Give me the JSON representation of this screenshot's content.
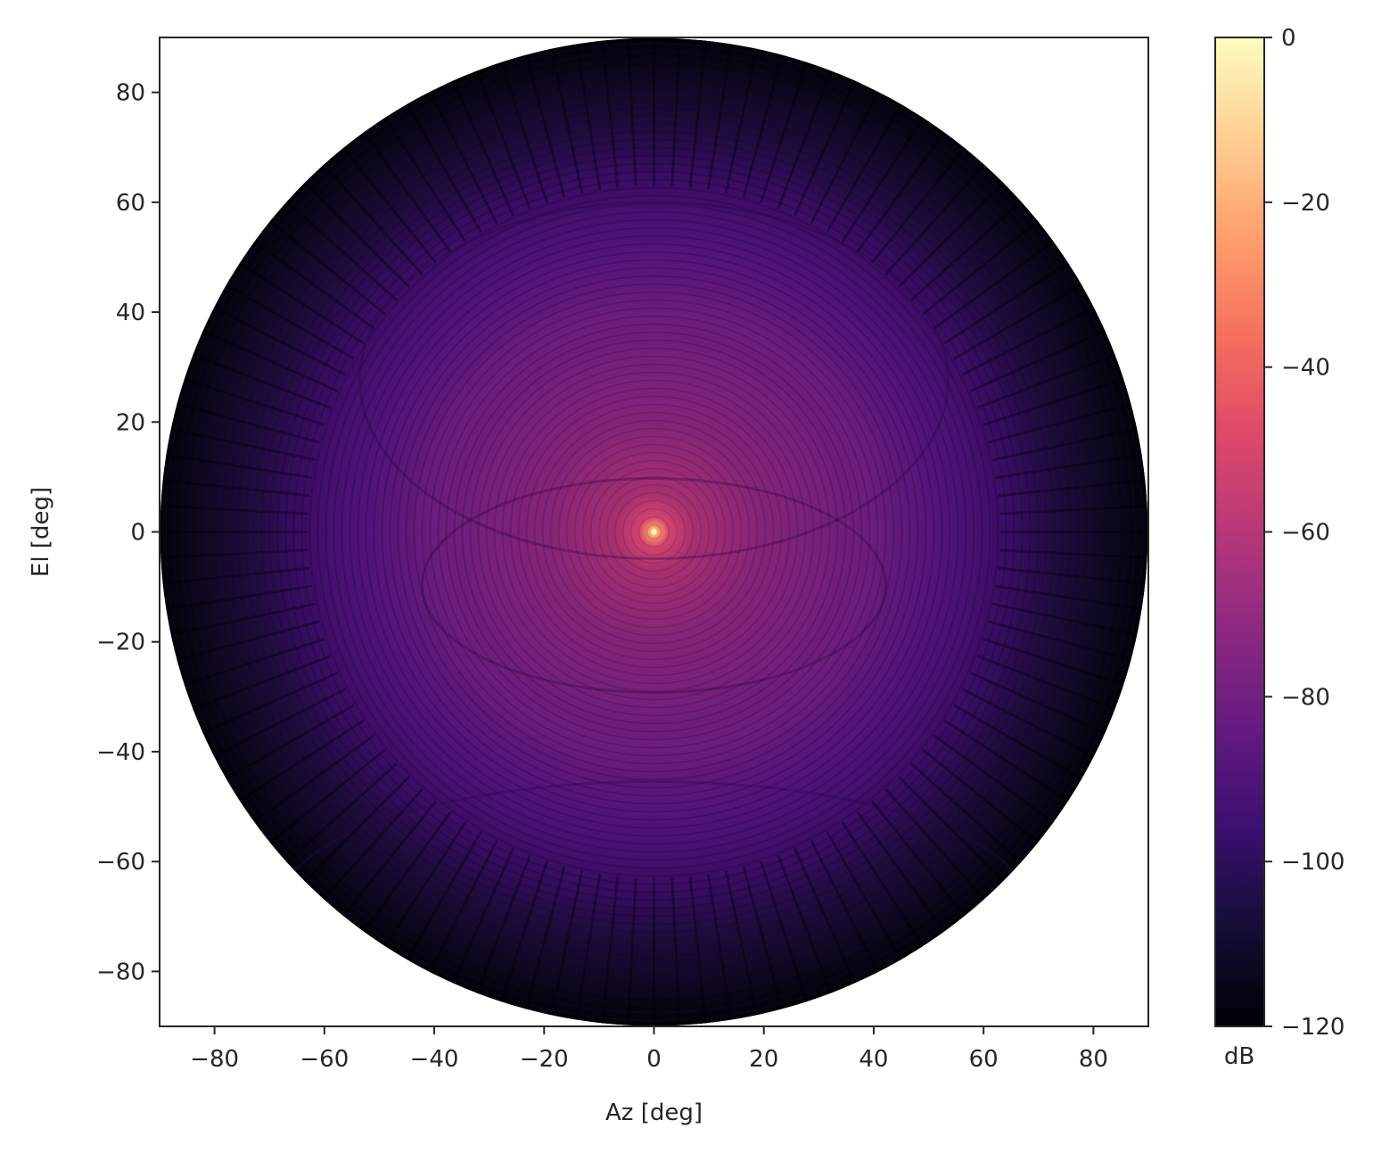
{
  "chart_data": {
    "type": "heatmap",
    "title": "",
    "xlabel": "Az [deg]",
    "ylabel": "El [deg]",
    "xlim": [
      -90,
      90
    ],
    "ylim": [
      -90,
      90
    ],
    "xticks": [
      -80,
      -60,
      -40,
      -20,
      0,
      20,
      40,
      60,
      80
    ],
    "yticks": [
      -80,
      -60,
      -40,
      -20,
      0,
      20,
      40,
      60,
      80
    ],
    "xtick_labels": [
      "−80",
      "−60",
      "−40",
      "−20",
      "0",
      "20",
      "40",
      "60",
      "80"
    ],
    "ytick_labels": [
      "−80",
      "−60",
      "−40",
      "−20",
      "0",
      "20",
      "40",
      "60",
      "80"
    ],
    "domain_shape": "circle",
    "domain_radius_deg": 90,
    "peak": {
      "az": 0,
      "el": 0,
      "value_db": 0
    },
    "colormap": "magma",
    "colorbar": {
      "label": "dB",
      "range": [
        -120,
        0
      ],
      "ticks": [
        0,
        -20,
        -40,
        -60,
        -80,
        -100,
        -120
      ],
      "tick_labels": [
        "0",
        "−20",
        "−40",
        "−60",
        "−80",
        "−100",
        "−120"
      ]
    },
    "grid": false,
    "legend": "none"
  }
}
